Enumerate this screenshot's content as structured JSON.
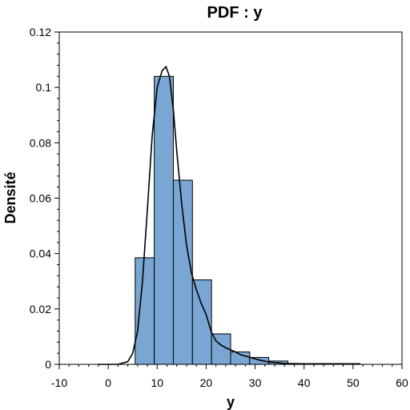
{
  "chart_data": {
    "type": "bar",
    "title": "PDF : y",
    "xlabel": "y",
    "ylabel": "Densité",
    "xlim": [
      -10,
      60
    ],
    "ylim": [
      0,
      0.12
    ],
    "xticks": [
      -10,
      0,
      10,
      20,
      30,
      40,
      50,
      60
    ],
    "yticks": [
      0,
      0.02,
      0.04,
      0.06,
      0.08,
      0.1,
      0.12
    ],
    "xtick_labels": [
      "-10",
      "0",
      "10",
      "20",
      "30",
      "40",
      "50",
      "60"
    ],
    "ytick_labels": [
      "0",
      "0.02",
      "0.04",
      "0.06",
      "0.08",
      "0.1",
      "0.12"
    ],
    "grid": false,
    "histogram": {
      "bin_edges": [
        5.5,
        9.4,
        13.3,
        17.2,
        21.1,
        25.0,
        28.9,
        32.8,
        36.7
      ],
      "values": [
        0.0385,
        0.104,
        0.0665,
        0.0305,
        0.011,
        0.0045,
        0.0025,
        0.0012
      ]
    },
    "density_curve": {
      "x": [
        -2,
        2,
        4,
        5,
        6,
        7,
        8,
        9,
        10,
        11,
        11.8,
        12.5,
        13.3,
        14,
        15,
        16,
        17,
        18,
        19,
        20,
        21,
        22,
        23,
        24,
        25,
        26,
        27,
        28,
        29,
        30,
        31,
        33,
        36,
        40,
        44,
        48,
        51.5
      ],
      "y": [
        0.0,
        0.0,
        0.001,
        0.004,
        0.012,
        0.03,
        0.056,
        0.083,
        0.1,
        0.106,
        0.1075,
        0.104,
        0.092,
        0.077,
        0.058,
        0.043,
        0.033,
        0.027,
        0.022,
        0.018,
        0.012,
        0.0085,
        0.007,
        0.006,
        0.0052,
        0.0045,
        0.0035,
        0.003,
        0.0025,
        0.002,
        0.0015,
        0.0008,
        0.0003,
        0.0002,
        0.0002,
        0.0002,
        0.0002
      ]
    }
  }
}
